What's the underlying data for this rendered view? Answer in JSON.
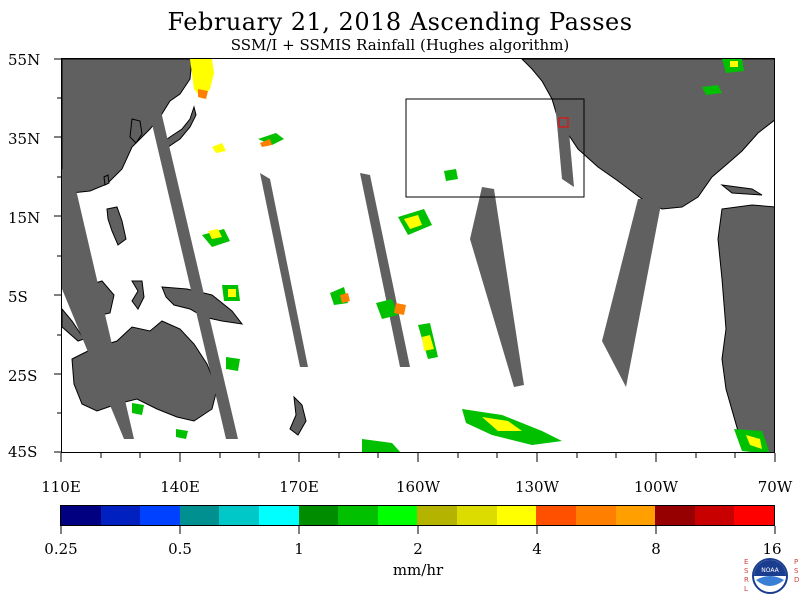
{
  "title": "February 21, 2018  Ascending Passes",
  "subtitle": "SSM/I + SSMIS Rainfall (Hughes algorithm)",
  "lat_labels": [
    "55N",
    "35N",
    "15N",
    "5S",
    "25S",
    "45S"
  ],
  "lon_labels": [
    "110E",
    "140E",
    "170E",
    "160W",
    "130W",
    "100W",
    "70W"
  ],
  "colorbar": {
    "colors": [
      "#000080",
      "#0020c0",
      "#0040ff",
      "#009090",
      "#00c8c8",
      "#00ffff",
      "#008c00",
      "#00c000",
      "#00ff00",
      "#b4b400",
      "#dcdc00",
      "#ffff00",
      "#ff5000",
      "#ff8000",
      "#ffa000",
      "#960000",
      "#c80000",
      "#ff0000"
    ],
    "tick_labels": [
      "0.25",
      "0.5",
      "1",
      "2",
      "4",
      "8",
      "16"
    ],
    "unit": "mm/hr"
  },
  "land_color": "#606060",
  "logo": {
    "left_text": "ESRL",
    "right_text": "PSD",
    "center": "NOAA"
  }
}
